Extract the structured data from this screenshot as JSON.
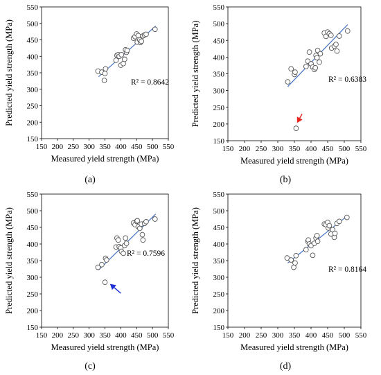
{
  "figure_colors": {
    "marker_edge": "#555555",
    "marker_fill": "#ffffff",
    "trend_line": "#4472c4",
    "arrow_b": "#e8251f",
    "arrow_c": "#1f2fd6"
  },
  "chart_data": [
    {
      "type": "scatter",
      "panel_label": "(a)",
      "xlabel": "Measured yield strength (MPa)",
      "ylabel": "Predicted yield strength (MPa)",
      "xlim": [
        150,
        550
      ],
      "ylim": [
        150,
        550
      ],
      "xticks": [
        "150",
        "200",
        "250",
        "300",
        "350",
        "400",
        "450",
        "500",
        "550"
      ],
      "yticks": [
        "150",
        "200",
        "250",
        "300",
        "350",
        "400",
        "450",
        "500",
        "550"
      ],
      "grid": false,
      "r2_label": "R² = 0.8642",
      "trendline": {
        "x": [
          330,
          510
        ],
        "y": [
          338,
          492
        ]
      },
      "points": [
        [
          328,
          355
        ],
        [
          340,
          352
        ],
        [
          348,
          327
        ],
        [
          350,
          348
        ],
        [
          352,
          362
        ],
        [
          385,
          388
        ],
        [
          388,
          403
        ],
        [
          392,
          405
        ],
        [
          395,
          400
        ],
        [
          400,
          373
        ],
        [
          402,
          405
        ],
        [
          408,
          378
        ],
        [
          412,
          391
        ],
        [
          415,
          420
        ],
        [
          418,
          412
        ],
        [
          420,
          418
        ],
        [
          440,
          455
        ],
        [
          445,
          460
        ],
        [
          450,
          468
        ],
        [
          452,
          443
        ],
        [
          455,
          463
        ],
        [
          460,
          450
        ],
        [
          462,
          442
        ],
        [
          465,
          446
        ],
        [
          470,
          462
        ],
        [
          475,
          465
        ],
        [
          480,
          467
        ],
        [
          508,
          482
        ]
      ]
    },
    {
      "type": "scatter",
      "panel_label": "(b)",
      "xlabel": "Measured yield strength (MPa)",
      "ylabel": "Predicted yield strength (MPa)",
      "xlim": [
        150,
        550
      ],
      "ylim": [
        150,
        550
      ],
      "xticks": [
        "150",
        "200",
        "250",
        "300",
        "350",
        "400",
        "450",
        "500",
        "550"
      ],
      "yticks": [
        "150",
        "200",
        "250",
        "300",
        "350",
        "400",
        "450",
        "500",
        "550"
      ],
      "grid": false,
      "r2_label": "R² = 0.6383",
      "trendline": {
        "x": [
          330,
          510
        ],
        "y": [
          312,
          497
        ]
      },
      "points": [
        [
          330,
          326
        ],
        [
          340,
          365
        ],
        [
          350,
          348
        ],
        [
          352,
          355
        ],
        [
          355,
          187
        ],
        [
          385,
          372
        ],
        [
          390,
          388
        ],
        [
          395,
          415
        ],
        [
          400,
          380
        ],
        [
          405,
          370
        ],
        [
          410,
          363
        ],
        [
          413,
          368
        ],
        [
          415,
          405
        ],
        [
          418,
          398
        ],
        [
          420,
          420
        ],
        [
          425,
          385
        ],
        [
          428,
          410
        ],
        [
          440,
          472
        ],
        [
          445,
          462
        ],
        [
          450,
          475
        ],
        [
          455,
          470
        ],
        [
          460,
          465
        ],
        [
          462,
          427
        ],
        [
          470,
          433
        ],
        [
          475,
          438
        ],
        [
          478,
          418
        ],
        [
          485,
          463
        ],
        [
          510,
          478
        ]
      ],
      "arrow": {
        "color": "#e8251f",
        "x": [
          373,
          358
        ],
        "y": [
          230,
          203
        ]
      }
    },
    {
      "type": "scatter",
      "panel_label": "(c)",
      "xlabel": "Measured yield strength (MPa)",
      "ylabel": "Predicted yield strength (MPa)",
      "xlim": [
        150,
        550
      ],
      "ylim": [
        150,
        550
      ],
      "xticks": [
        "150",
        "200",
        "250",
        "300",
        "350",
        "400",
        "450",
        "500",
        "550"
      ],
      "yticks": [
        "150",
        "200",
        "250",
        "300",
        "350",
        "400",
        "450",
        "500",
        "550"
      ],
      "grid": false,
      "r2_label": "R² = 0.7596",
      "trendline": {
        "x": [
          330,
          510
        ],
        "y": [
          322,
          490
        ]
      },
      "points": [
        [
          328,
          330
        ],
        [
          340,
          338
        ],
        [
          350,
          285
        ],
        [
          352,
          357
        ],
        [
          355,
          352
        ],
        [
          385,
          391
        ],
        [
          388,
          418
        ],
        [
          392,
          412
        ],
        [
          395,
          392
        ],
        [
          400,
          388
        ],
        [
          402,
          378
        ],
        [
          408,
          372
        ],
        [
          412,
          395
        ],
        [
          415,
          418
        ],
        [
          418,
          402
        ],
        [
          440,
          463
        ],
        [
          445,
          458
        ],
        [
          450,
          468
        ],
        [
          452,
          470
        ],
        [
          455,
          452
        ],
        [
          460,
          447
        ],
        [
          465,
          460
        ],
        [
          468,
          428
        ],
        [
          470,
          412
        ],
        [
          475,
          462
        ],
        [
          480,
          467
        ],
        [
          508,
          475
        ]
      ],
      "arrow": {
        "color": "#1f2fd6",
        "x": [
          400,
          366
        ],
        "y": [
          252,
          280
        ]
      }
    },
    {
      "type": "scatter",
      "panel_label": "(d)",
      "xlabel": "Measured yield strength (MPa)",
      "ylabel": "Predicted yield strength (MPa)",
      "xlim": [
        150,
        550
      ],
      "ylim": [
        150,
        550
      ],
      "xticks": [
        "150",
        "200",
        "250",
        "300",
        "350",
        "400",
        "450",
        "500",
        "550"
      ],
      "yticks": [
        "150",
        "200",
        "250",
        "300",
        "350",
        "400",
        "450",
        "500",
        "550"
      ],
      "grid": false,
      "r2_label": "R² = 0.8164",
      "trendline": {
        "x": [
          330,
          510
        ],
        "y": [
          343,
          485
        ]
      },
      "points": [
        [
          328,
          358
        ],
        [
          340,
          352
        ],
        [
          348,
          330
        ],
        [
          352,
          343
        ],
        [
          355,
          365
        ],
        [
          385,
          383
        ],
        [
          390,
          408
        ],
        [
          392,
          412
        ],
        [
          395,
          400
        ],
        [
          400,
          395
        ],
        [
          405,
          366
        ],
        [
          410,
          402
        ],
        [
          415,
          418
        ],
        [
          418,
          425
        ],
        [
          420,
          408
        ],
        [
          440,
          460
        ],
        [
          445,
          458
        ],
        [
          450,
          465
        ],
        [
          452,
          448
        ],
        [
          455,
          455
        ],
        [
          460,
          430
        ],
        [
          465,
          443
        ],
        [
          470,
          420
        ],
        [
          472,
          432
        ],
        [
          478,
          462
        ],
        [
          485,
          468
        ],
        [
          508,
          480
        ]
      ]
    }
  ]
}
